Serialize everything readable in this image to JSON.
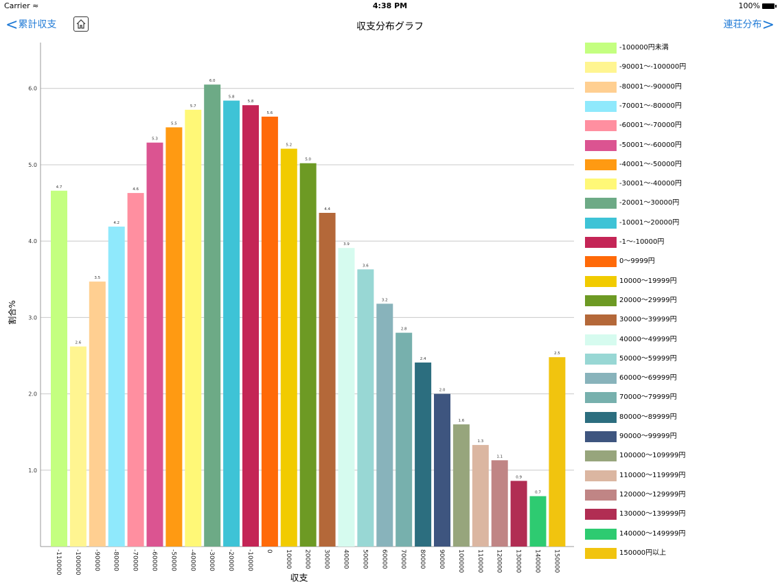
{
  "status": {
    "carrier": "Carrier",
    "time": "4:38 PM",
    "battery": "100%"
  },
  "nav": {
    "back_label": "累計収支",
    "back_chevron": "<",
    "title": "収支分布グラフ",
    "forward_label": "連荘分布",
    "forward_chevron": ">",
    "home_icon": "home-icon"
  },
  "chart_data": {
    "type": "bar",
    "xlabel": "収支",
    "ylabel": "割合%",
    "ylim": [
      0,
      6.6
    ],
    "yticks": [
      "1.0",
      "2.0",
      "3.0",
      "4.0",
      "5.0",
      "6.0"
    ],
    "grid": true,
    "legend_position": "right",
    "categories": [
      "-110000",
      "-100000",
      "-90000",
      "-80000",
      "-70000",
      "-60000",
      "-50000",
      "-40000",
      "-30000",
      "-20000",
      "-10000",
      "0",
      "10000",
      "20000",
      "30000",
      "40000",
      "50000",
      "60000",
      "70000",
      "80000",
      "90000",
      "100000",
      "110000",
      "120000",
      "130000",
      "140000",
      "150000"
    ],
    "values": [
      4.66,
      2.62,
      3.47,
      4.19,
      4.63,
      5.29,
      5.49,
      5.72,
      6.05,
      5.84,
      5.78,
      5.63,
      5.21,
      5.02,
      4.37,
      3.91,
      3.63,
      3.18,
      2.8,
      2.41,
      2.0,
      1.6,
      1.33,
      1.13,
      0.86,
      0.66,
      2.48
    ],
    "value_labels": [
      "4.7",
      "2.6",
      "3.5",
      "4.2",
      "4.6",
      "5.3",
      "5.5",
      "5.7",
      "6.0",
      "5.8",
      "5.8",
      "5.6",
      "5.2",
      "5.0",
      "4.4",
      "3.9",
      "3.6",
      "3.2",
      "2.8",
      "2.4",
      "2.0",
      "1.6",
      "1.3",
      "1.1",
      "0.9",
      "0.7",
      "2.5"
    ],
    "colors": [
      "#c4ff80",
      "#fff591",
      "#ffcf91",
      "#8fe9fc",
      "#ff8fa0",
      "#db5491",
      "#ff9a12",
      "#fff877",
      "#6daa86",
      "#3ec3d6",
      "#c42556",
      "#ff6a08",
      "#f1cb00",
      "#6d9a24",
      "#b46839",
      "#d6fbef",
      "#98d7d4",
      "#88b3bb",
      "#77b0ad",
      "#2c6e7f",
      "#3e557f",
      "#97a57c",
      "#dbb6a1",
      "#c08585",
      "#b12d53",
      "#2ecb71",
      "#f1c40f"
    ],
    "legend": [
      "-100000円未満",
      "-90001〜-100000円",
      "-80001〜-90000円",
      "-70001〜-80000円",
      "-60001〜-70000円",
      "-50001〜-60000円",
      "-40001〜-50000円",
      "-30001〜-40000円",
      "-20001〜30000円",
      "-10001〜20000円",
      "-1〜-10000円",
      "0〜9999円",
      "10000〜19999円",
      "20000〜29999円",
      "30000〜39999円",
      "40000〜49999円",
      "50000〜59999円",
      "60000〜69999円",
      "70000〜79999円",
      "80000〜89999円",
      "90000〜99999円",
      "100000〜109999円",
      "110000〜119999円",
      "120000〜129999円",
      "130000〜139999円",
      "140000〜149999円",
      "150000円以上"
    ]
  }
}
